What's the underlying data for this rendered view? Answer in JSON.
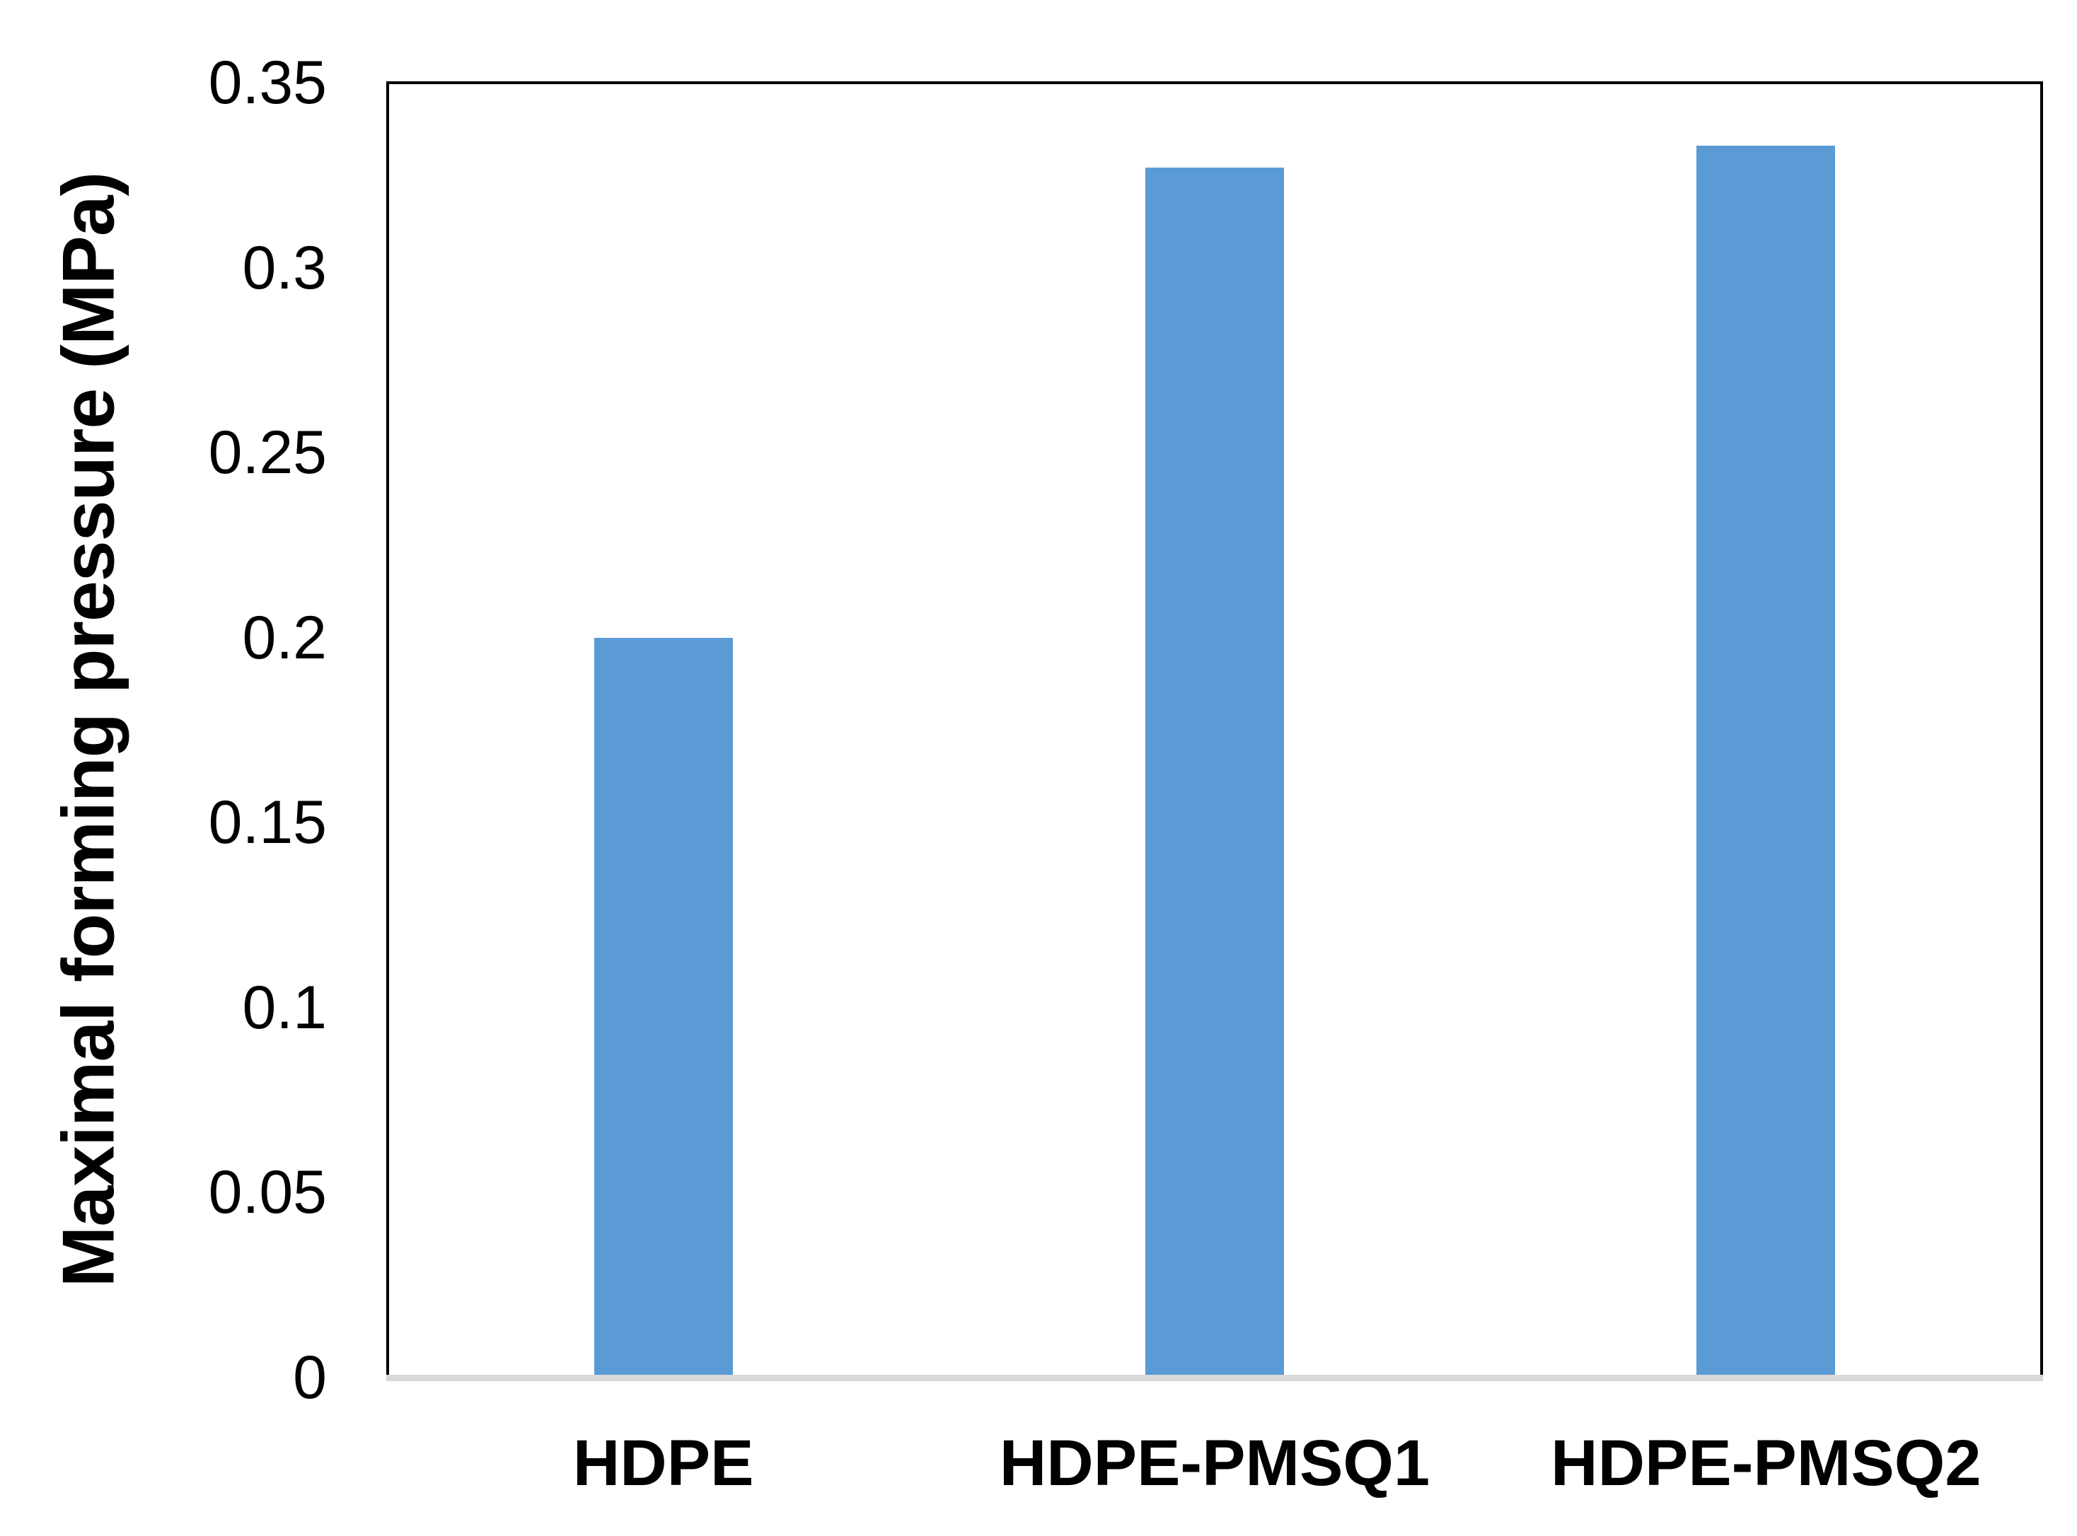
{
  "chart_data": {
    "type": "bar",
    "title": "",
    "categories": [
      "HDPE",
      "HDPE-PMSQ1",
      "HDPE-PMSQ2"
    ],
    "values": [
      0.2,
      0.327,
      0.333
    ],
    "xlabel": "",
    "ylabel": "Maximal forming pressure (MPa)",
    "ylim": [
      0,
      0.35
    ],
    "ytick_values": [
      0,
      0.05,
      0.1,
      0.15,
      0.2,
      0.25,
      0.3,
      0.35
    ],
    "ytick_labels": [
      "0",
      "0.05",
      "0.1",
      "0.15",
      "0.2",
      "0.25",
      "0.3",
      "0.35"
    ],
    "grid": false,
    "legend": false,
    "colors": {
      "bar": "#5B9BD5",
      "plot_border": "#000000",
      "baseline": "#D9D9D9",
      "text": "#000000",
      "background": "#FFFFFF"
    }
  }
}
